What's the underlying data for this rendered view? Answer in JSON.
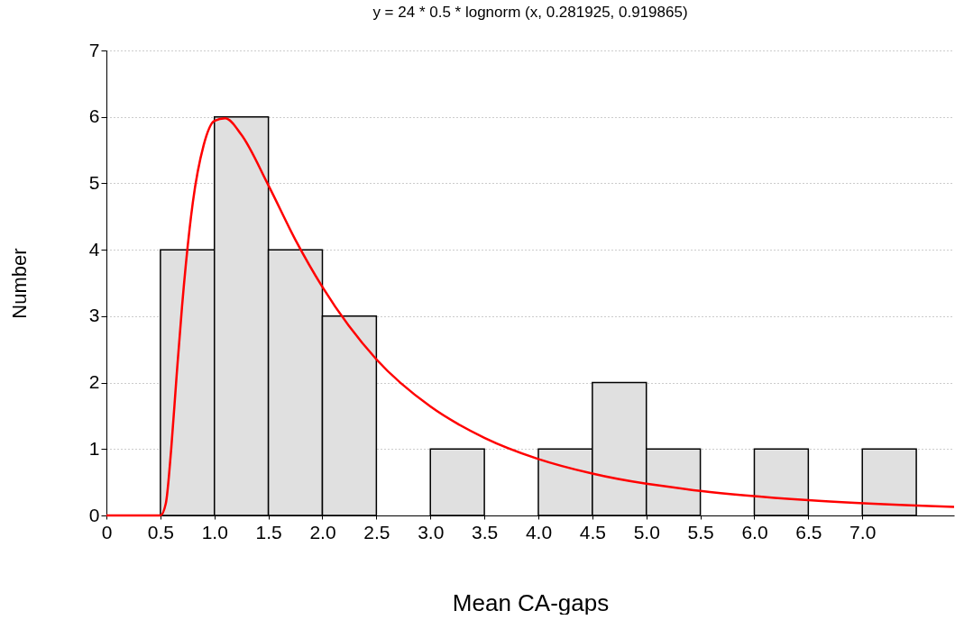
{
  "chart_data": {
    "type": "histogram",
    "title": "y = 24 * 0.5 * lognorm (x, 0.281925, 0.919865)",
    "xlabel": "Mean CA-gaps",
    "ylabel": "Number",
    "bins": [
      0.5,
      1.0,
      1.5,
      2.0,
      2.5,
      3.0,
      3.5,
      4.0,
      4.5,
      5.0,
      5.5,
      6.0,
      6.5,
      7.0,
      7.5
    ],
    "series": [
      {
        "color": "#e0e0e0",
        "values": [
          4,
          6,
          4,
          3,
          0,
          1,
          0,
          1,
          2,
          1,
          0,
          1,
          0,
          1
        ]
      },
      {
        "type": "line",
        "color": "#ff0000",
        "x": [
          0,
          0.5,
          0.55,
          0.6,
          0.65,
          0.7,
          0.8,
          0.9,
          1.0,
          1.1,
          1.25,
          1.5,
          1.75,
          2.0,
          2.5,
          3.0,
          3.5,
          4.0,
          4.5,
          5.5,
          6.5,
          7.5,
          7.85
        ],
        "values": [
          0,
          0,
          0.18,
          1.0,
          2.1,
          3.14,
          4.71,
          5.57,
          5.94,
          5.98,
          5.73,
          4.97,
          4.15,
          3.44,
          2.35,
          1.64,
          1.17,
          0.85,
          0.63,
          0.37,
          0.23,
          0.15,
          0.13
        ]
      }
    ],
    "xlim": [
      0,
      7.85
    ],
    "xticks": [
      0,
      0.5,
      {
        "value": 1,
        "label": "1.0"
      },
      1.5,
      {
        "value": 2,
        "label": "2.0"
      },
      2.5,
      {
        "value": 3,
        "label": "3.0"
      },
      3.5,
      {
        "value": 4,
        "label": "4.0"
      },
      4.5,
      {
        "value": 5,
        "label": "5.0"
      },
      5.5,
      {
        "value": 6,
        "label": "6.0"
      },
      6.5,
      {
        "value": 7,
        "label": "7.0"
      }
    ],
    "ylim": [
      0,
      7
    ],
    "yticks": [
      0,
      1,
      2,
      3,
      4,
      5,
      6,
      7
    ],
    "grid": "y",
    "line_style": "solid",
    "marker": "none"
  }
}
